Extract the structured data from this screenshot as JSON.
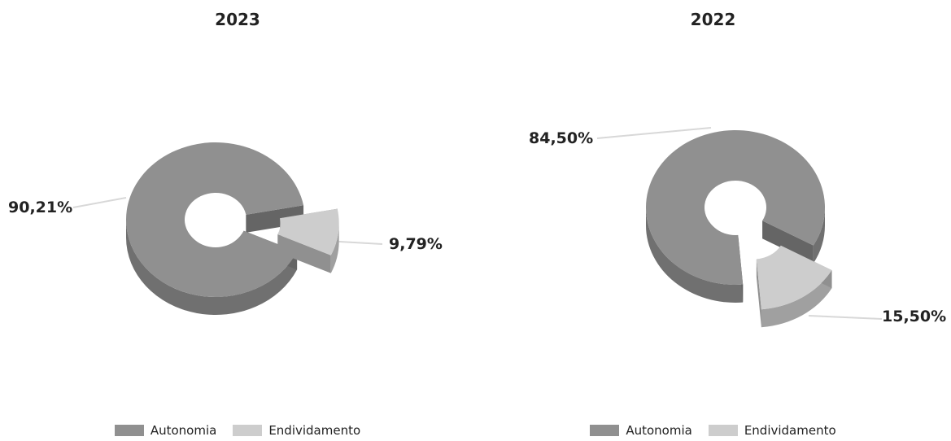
{
  "chart_data": [
    {
      "type": "pie",
      "variant": "3d-donut-exploded",
      "title": "2023",
      "categories": [
        "Autonomia",
        "Endividamento"
      ],
      "values": [
        90.21,
        9.79
      ],
      "data_labels": [
        "90,21%",
        "9,79%"
      ],
      "colors": [
        "#909090",
        "#cdcdcd"
      ],
      "legend": "bottom"
    },
    {
      "type": "pie",
      "variant": "3d-donut-exploded",
      "title": "2022",
      "categories": [
        "Autonomia",
        "Endividamento"
      ],
      "values": [
        84.5,
        15.5
      ],
      "data_labels": [
        "84,50%",
        "15,50%"
      ],
      "colors": [
        "#909090",
        "#cdcdcd"
      ],
      "legend": "bottom"
    }
  ]
}
